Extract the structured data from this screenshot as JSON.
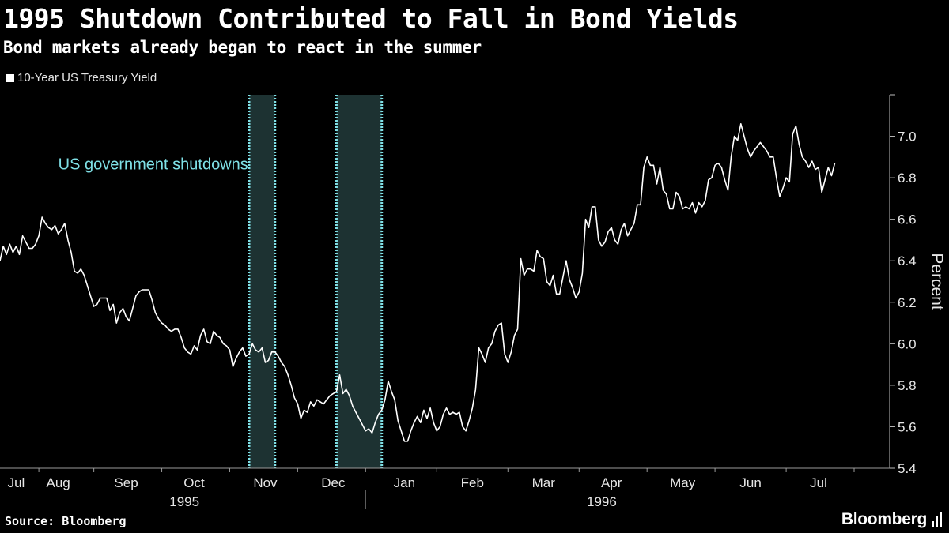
{
  "header": {
    "title": "1995 Shutdown Contributed to Fall in Bond Yields",
    "subtitle": "Bond markets already began to react in the summer"
  },
  "legend": {
    "label": "10-Year US Treasury Yield"
  },
  "footer": {
    "source_label": "Source:",
    "source_value": "Bloomberg",
    "brand": "Bloomberg"
  },
  "colors": {
    "background": "#000000",
    "line": "#ffffff",
    "shade": "#1d3232",
    "shade_border": "#7fe0e6",
    "annotation": "#7fe0e6",
    "grid": "#333333"
  },
  "chart_data": {
    "type": "line",
    "x_unit": "trading-day index (Jul 1995 – Jul 1996)",
    "ylabel": "Percent",
    "ylim": [
      5.4,
      7.2
    ],
    "y_ticks": [
      5.4,
      5.6,
      5.8,
      6.0,
      6.2,
      6.4,
      6.6,
      6.8,
      7.0
    ],
    "y_tick_labels": [
      "5.4",
      "5.6",
      "5.8",
      "6.0",
      "6.2",
      "6.4",
      "6.6",
      "6.8",
      "7.0"
    ],
    "x_range": [
      0,
      275
    ],
    "month_labels": [
      {
        "label": "Jul",
        "x": 5
      },
      {
        "label": "Aug",
        "x": 18
      },
      {
        "label": "Sep",
        "x": 39
      },
      {
        "label": "Oct",
        "x": 60
      },
      {
        "label": "Nov",
        "x": 82
      },
      {
        "label": "Dec",
        "x": 103
      },
      {
        "label": "Jan",
        "x": 125
      },
      {
        "label": "Feb",
        "x": 146
      },
      {
        "label": "Mar",
        "x": 168
      },
      {
        "label": "Apr",
        "x": 189
      },
      {
        "label": "May",
        "x": 211
      },
      {
        "label": "Jun",
        "x": 232
      },
      {
        "label": "Jul",
        "x": 253
      }
    ],
    "month_boundaries": [
      12,
      29,
      50,
      71,
      92,
      113,
      135,
      157,
      179,
      200,
      221,
      243,
      264
    ],
    "year_labels": [
      {
        "label": "1995",
        "x": 57
      },
      {
        "label": "1996",
        "x": 186
      }
    ],
    "year_divider_x": 113,
    "shutdowns": [
      {
        "start": 77,
        "end": 85
      },
      {
        "start": 104,
        "end": 118
      }
    ],
    "annotation": {
      "text": "US government shutdowns",
      "x": 18,
      "y": 6.84
    },
    "series": [
      {
        "name": "10-Year US Treasury Yield",
        "values": [
          [
            0,
            6.4
          ],
          [
            1,
            6.47
          ],
          [
            2,
            6.43
          ],
          [
            3,
            6.48
          ],
          [
            4,
            6.44
          ],
          [
            5,
            6.47
          ],
          [
            6,
            6.43
          ],
          [
            7,
            6.52
          ],
          [
            8,
            6.49
          ],
          [
            9,
            6.46
          ],
          [
            10,
            6.46
          ],
          [
            11,
            6.48
          ],
          [
            12,
            6.52
          ],
          [
            13,
            6.61
          ],
          [
            14,
            6.58
          ],
          [
            15,
            6.56
          ],
          [
            16,
            6.55
          ],
          [
            17,
            6.57
          ],
          [
            18,
            6.53
          ],
          [
            19,
            6.55
          ],
          [
            20,
            6.58
          ],
          [
            21,
            6.5
          ],
          [
            22,
            6.44
          ],
          [
            23,
            6.35
          ],
          [
            24,
            6.34
          ],
          [
            25,
            6.36
          ],
          [
            26,
            6.33
          ],
          [
            27,
            6.28
          ],
          [
            28,
            6.23
          ],
          [
            29,
            6.18
          ],
          [
            30,
            6.19
          ],
          [
            31,
            6.22
          ],
          [
            32,
            6.22
          ],
          [
            33,
            6.22
          ],
          [
            34,
            6.16
          ],
          [
            35,
            6.19
          ],
          [
            36,
            6.1
          ],
          [
            37,
            6.15
          ],
          [
            38,
            6.17
          ],
          [
            39,
            6.13
          ],
          [
            40,
            6.11
          ],
          [
            41,
            6.17
          ],
          [
            42,
            6.23
          ],
          [
            43,
            6.25
          ],
          [
            44,
            6.26
          ],
          [
            45,
            6.26
          ],
          [
            46,
            6.26
          ],
          [
            47,
            6.21
          ],
          [
            48,
            6.15
          ],
          [
            49,
            6.12
          ],
          [
            50,
            6.1
          ],
          [
            51,
            6.09
          ],
          [
            52,
            6.07
          ],
          [
            53,
            6.06
          ],
          [
            54,
            6.07
          ],
          [
            55,
            6.07
          ],
          [
            56,
            6.03
          ],
          [
            57,
            5.98
          ],
          [
            58,
            5.96
          ],
          [
            59,
            5.95
          ],
          [
            60,
            5.99
          ],
          [
            61,
            5.97
          ],
          [
            62,
            6.04
          ],
          [
            63,
            6.07
          ],
          [
            64,
            6.01
          ],
          [
            65,
            6.0
          ],
          [
            66,
            6.06
          ],
          [
            67,
            6.04
          ],
          [
            68,
            6.03
          ],
          [
            69,
            6.0
          ],
          [
            70,
            5.99
          ],
          [
            71,
            5.97
          ],
          [
            72,
            5.89
          ],
          [
            73,
            5.93
          ],
          [
            74,
            5.96
          ],
          [
            75,
            5.98
          ],
          [
            76,
            5.94
          ],
          [
            77,
            5.95
          ],
          [
            78,
            6.0
          ],
          [
            79,
            5.97
          ],
          [
            80,
            5.96
          ],
          [
            81,
            5.98
          ],
          [
            82,
            5.91
          ],
          [
            83,
            5.92
          ],
          [
            84,
            5.96
          ],
          [
            85,
            5.96
          ],
          [
            86,
            5.94
          ],
          [
            87,
            5.91
          ],
          [
            88,
            5.89
          ],
          [
            89,
            5.85
          ],
          [
            90,
            5.8
          ],
          [
            91,
            5.74
          ],
          [
            92,
            5.71
          ],
          [
            93,
            5.64
          ],
          [
            94,
            5.68
          ],
          [
            95,
            5.67
          ],
          [
            96,
            5.72
          ],
          [
            97,
            5.7
          ],
          [
            98,
            5.73
          ],
          [
            99,
            5.72
          ],
          [
            100,
            5.71
          ],
          [
            101,
            5.73
          ],
          [
            102,
            5.75
          ],
          [
            103,
            5.76
          ],
          [
            104,
            5.77
          ],
          [
            105,
            5.85
          ],
          [
            106,
            5.76
          ],
          [
            107,
            5.78
          ],
          [
            108,
            5.75
          ],
          [
            109,
            5.7
          ],
          [
            110,
            5.67
          ],
          [
            111,
            5.64
          ],
          [
            112,
            5.61
          ],
          [
            113,
            5.58
          ],
          [
            114,
            5.59
          ],
          [
            115,
            5.57
          ],
          [
            116,
            5.62
          ],
          [
            117,
            5.66
          ],
          [
            118,
            5.68
          ],
          [
            119,
            5.73
          ],
          [
            120,
            5.82
          ],
          [
            121,
            5.77
          ],
          [
            122,
            5.73
          ],
          [
            123,
            5.63
          ],
          [
            124,
            5.58
          ],
          [
            125,
            5.53
          ],
          [
            126,
            5.53
          ],
          [
            127,
            5.58
          ],
          [
            128,
            5.62
          ],
          [
            129,
            5.65
          ],
          [
            130,
            5.62
          ],
          [
            131,
            5.68
          ],
          [
            132,
            5.64
          ],
          [
            133,
            5.69
          ],
          [
            134,
            5.62
          ],
          [
            135,
            5.58
          ],
          [
            136,
            5.6
          ],
          [
            137,
            5.66
          ],
          [
            138,
            5.69
          ],
          [
            139,
            5.66
          ],
          [
            140,
            5.67
          ],
          [
            141,
            5.66
          ],
          [
            142,
            5.67
          ],
          [
            143,
            5.6
          ],
          [
            144,
            5.58
          ],
          [
            145,
            5.63
          ],
          [
            146,
            5.69
          ],
          [
            147,
            5.78
          ],
          [
            148,
            5.98
          ],
          [
            149,
            5.95
          ],
          [
            150,
            5.91
          ],
          [
            151,
            5.98
          ],
          [
            152,
            6.0
          ],
          [
            153,
            6.06
          ],
          [
            154,
            6.09
          ],
          [
            155,
            6.1
          ],
          [
            156,
            5.95
          ],
          [
            157,
            5.91
          ],
          [
            158,
            5.96
          ],
          [
            159,
            6.04
          ],
          [
            160,
            6.07
          ],
          [
            161,
            6.41
          ],
          [
            162,
            6.33
          ],
          [
            163,
            6.36
          ],
          [
            164,
            6.36
          ],
          [
            165,
            6.35
          ],
          [
            166,
            6.45
          ],
          [
            167,
            6.42
          ],
          [
            168,
            6.41
          ],
          [
            169,
            6.3
          ],
          [
            170,
            6.28
          ],
          [
            171,
            6.33
          ],
          [
            172,
            6.24
          ],
          [
            173,
            6.24
          ],
          [
            174,
            6.32
          ],
          [
            175,
            6.4
          ],
          [
            176,
            6.31
          ],
          [
            177,
            6.27
          ],
          [
            178,
            6.22
          ],
          [
            179,
            6.25
          ],
          [
            180,
            6.34
          ],
          [
            181,
            6.6
          ],
          [
            182,
            6.56
          ],
          [
            183,
            6.66
          ],
          [
            184,
            6.66
          ],
          [
            185,
            6.5
          ],
          [
            186,
            6.47
          ],
          [
            187,
            6.49
          ],
          [
            188,
            6.54
          ],
          [
            189,
            6.56
          ],
          [
            190,
            6.5
          ],
          [
            191,
            6.48
          ],
          [
            192,
            6.55
          ],
          [
            193,
            6.58
          ],
          [
            194,
            6.52
          ],
          [
            195,
            6.55
          ],
          [
            196,
            6.58
          ],
          [
            197,
            6.67
          ],
          [
            198,
            6.67
          ],
          [
            199,
            6.85
          ],
          [
            200,
            6.9
          ],
          [
            201,
            6.86
          ],
          [
            202,
            6.86
          ],
          [
            203,
            6.77
          ],
          [
            204,
            6.85
          ],
          [
            205,
            6.74
          ],
          [
            206,
            6.72
          ],
          [
            207,
            6.65
          ],
          [
            208,
            6.65
          ],
          [
            209,
            6.73
          ],
          [
            210,
            6.71
          ],
          [
            211,
            6.65
          ],
          [
            212,
            6.66
          ],
          [
            213,
            6.65
          ],
          [
            214,
            6.68
          ],
          [
            215,
            6.63
          ],
          [
            216,
            6.68
          ],
          [
            217,
            6.66
          ],
          [
            218,
            6.69
          ],
          [
            219,
            6.79
          ],
          [
            220,
            6.8
          ],
          [
            221,
            6.86
          ],
          [
            222,
            6.87
          ],
          [
            223,
            6.85
          ],
          [
            224,
            6.79
          ],
          [
            225,
            6.74
          ],
          [
            226,
            6.9
          ],
          [
            227,
            7.0
          ],
          [
            228,
            6.98
          ],
          [
            229,
            7.06
          ],
          [
            230,
            7.0
          ],
          [
            231,
            6.94
          ],
          [
            232,
            6.9
          ],
          [
            233,
            6.93
          ],
          [
            234,
            6.95
          ],
          [
            235,
            6.97
          ],
          [
            236,
            6.95
          ],
          [
            237,
            6.93
          ],
          [
            238,
            6.9
          ],
          [
            239,
            6.9
          ],
          [
            240,
            6.8
          ],
          [
            241,
            6.71
          ],
          [
            242,
            6.75
          ],
          [
            243,
            6.8
          ],
          [
            244,
            6.78
          ],
          [
            245,
            7.01
          ],
          [
            246,
            7.05
          ],
          [
            247,
            6.96
          ],
          [
            248,
            6.9
          ],
          [
            249,
            6.88
          ],
          [
            250,
            6.85
          ],
          [
            251,
            6.88
          ],
          [
            252,
            6.84
          ],
          [
            253,
            6.85
          ],
          [
            254,
            6.73
          ],
          [
            255,
            6.79
          ],
          [
            256,
            6.85
          ],
          [
            257,
            6.81
          ],
          [
            258,
            6.87
          ]
        ]
      }
    ]
  }
}
